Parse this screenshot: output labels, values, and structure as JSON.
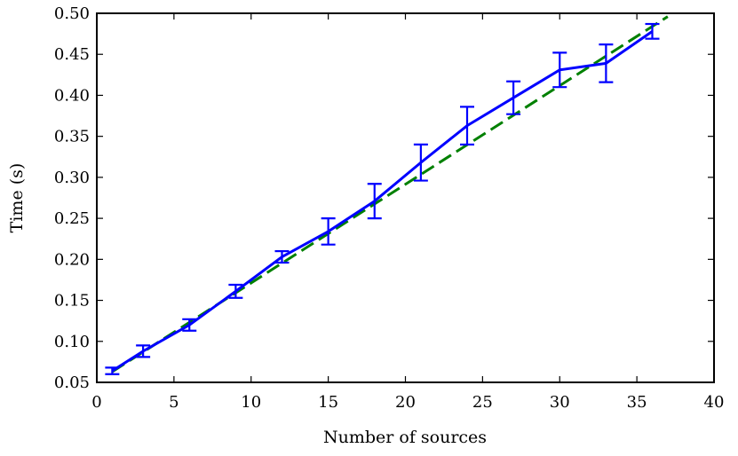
{
  "chart_data": {
    "type": "line",
    "xlabel": "Number of sources",
    "ylabel": "Time (s)",
    "xlim": [
      0,
      40
    ],
    "ylim": [
      0.05,
      0.5
    ],
    "xticks": [
      0,
      5,
      10,
      15,
      20,
      25,
      30,
      35,
      40
    ],
    "yticks": [
      0.05,
      0.1,
      0.15,
      0.2,
      0.25,
      0.3,
      0.35,
      0.4,
      0.45,
      0.5
    ],
    "grid": false,
    "series": [
      {
        "kind": "errorbar",
        "color": "#0000ff",
        "x": [
          1,
          3,
          6,
          9,
          12,
          15,
          18,
          21,
          24,
          27,
          30,
          33,
          36
        ],
        "y": [
          0.064,
          0.088,
          0.12,
          0.161,
          0.203,
          0.234,
          0.271,
          0.318,
          0.363,
          0.397,
          0.431,
          0.439,
          0.478
        ],
        "yerr": [
          0.004,
          0.007,
          0.007,
          0.008,
          0.007,
          0.016,
          0.021,
          0.022,
          0.023,
          0.02,
          0.021,
          0.023,
          0.009
        ]
      },
      {
        "kind": "fit",
        "color": "#008000",
        "dashed": true,
        "x": [
          1,
          37
        ],
        "y": [
          0.063,
          0.496
        ]
      }
    ]
  }
}
